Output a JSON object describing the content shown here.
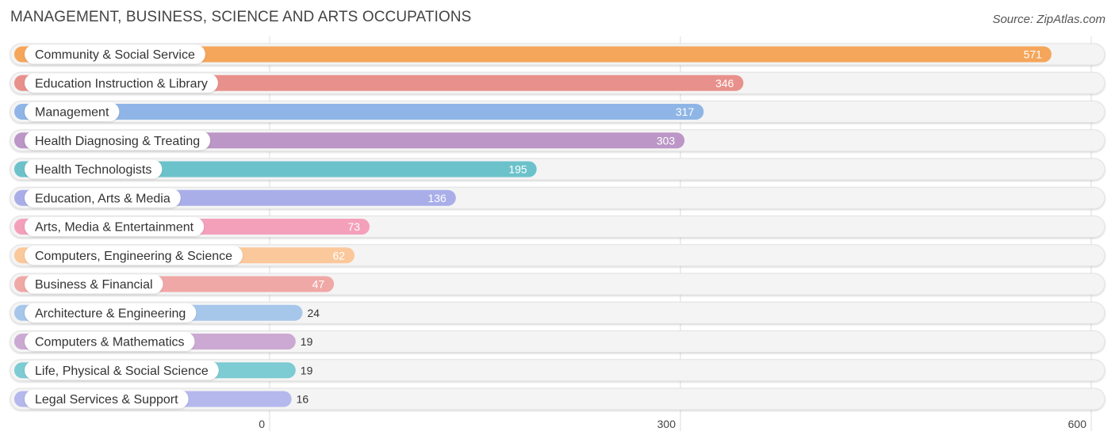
{
  "header": {
    "title": "MANAGEMENT, BUSINESS, SCIENCE AND ARTS OCCUPATIONS",
    "source": "Source: ZipAtlas.com"
  },
  "chart_data": {
    "type": "bar",
    "orientation": "horizontal",
    "title": "MANAGEMENT, BUSINESS, SCIENCE AND ARTS OCCUPATIONS",
    "xlabel": "",
    "ylabel": "",
    "xlim": [
      0,
      600
    ],
    "x_ticks": [
      0,
      300,
      600
    ],
    "grid": true,
    "categories": [
      "Community & Social Service",
      "Education Instruction & Library",
      "Management",
      "Health Diagnosing & Treating",
      "Health Technologists",
      "Education, Arts & Media",
      "Arts, Media & Entertainment",
      "Computers, Engineering & Science",
      "Business & Financial",
      "Architecture & Engineering",
      "Computers & Mathematics",
      "Life, Physical & Social Science",
      "Legal Services & Support"
    ],
    "values": [
      571,
      346,
      317,
      303,
      195,
      136,
      73,
      62,
      47,
      24,
      19,
      19,
      16
    ],
    "colors": [
      "#f5a65b",
      "#e8908b",
      "#8fb5e6",
      "#bb96c6",
      "#6cc2cb",
      "#a9aee9",
      "#f4a0bb",
      "#fbc89b",
      "#f0a8a6",
      "#a6c6ea",
      "#cba9d2",
      "#7dcbd3",
      "#b5b8ec"
    ]
  }
}
